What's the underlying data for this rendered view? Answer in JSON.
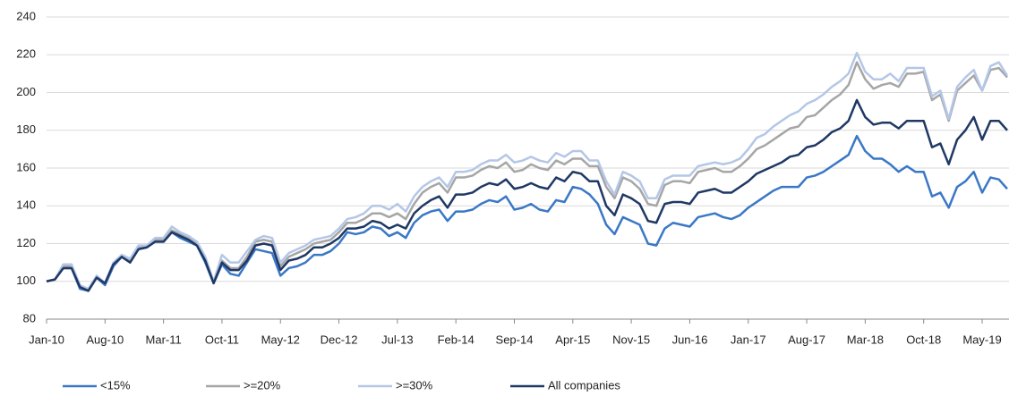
{
  "chart_data": {
    "type": "line",
    "categories": [
      "Jan-10",
      null,
      null,
      null,
      null,
      null,
      null,
      "Aug-10",
      null,
      null,
      null,
      null,
      null,
      null,
      "Mar-11",
      null,
      null,
      null,
      null,
      null,
      null,
      "Oct-11",
      null,
      null,
      null,
      null,
      null,
      null,
      "May-12",
      null,
      null,
      null,
      null,
      null,
      null,
      "Dec-12",
      null,
      null,
      null,
      null,
      null,
      null,
      "Jul-13",
      null,
      null,
      null,
      null,
      null,
      null,
      "Feb-14",
      null,
      null,
      null,
      null,
      null,
      null,
      "Sep-14",
      null,
      null,
      null,
      null,
      null,
      null,
      "Apr-15",
      null,
      null,
      null,
      null,
      null,
      null,
      "Nov-15",
      null,
      null,
      null,
      null,
      null,
      null,
      "Jun-16",
      null,
      null,
      null,
      null,
      null,
      null,
      "Jan-17",
      null,
      null,
      null,
      null,
      null,
      null,
      "Aug-17",
      null,
      null,
      null,
      null,
      null,
      null,
      "Mar-18",
      null,
      null,
      null,
      null,
      null,
      null,
      "Oct-18",
      null,
      null,
      null,
      null,
      null,
      null,
      "May-19",
      null,
      null,
      null
    ],
    "series": [
      {
        "name": "<15%",
        "color": "#3a78c6",
        "values": [
          100,
          101,
          107,
          107,
          96,
          95,
          102,
          98,
          108,
          113,
          110,
          117,
          118,
          121,
          121,
          126,
          123,
          121,
          119,
          110,
          99,
          109,
          104,
          103,
          110,
          117,
          116,
          115,
          103,
          107,
          108,
          110,
          114,
          114,
          116,
          120,
          126,
          125,
          126,
          129,
          128,
          124,
          126,
          123,
          131,
          135,
          137,
          138,
          132,
          137,
          137,
          138,
          141,
          143,
          142,
          145,
          138,
          139,
          141,
          138,
          137,
          143,
          142,
          150,
          149,
          146,
          141,
          130,
          125,
          134,
          132,
          130,
          120,
          119,
          128,
          131,
          130,
          129,
          134,
          135,
          136,
          134,
          133,
          135,
          139,
          142,
          145,
          148,
          150,
          150,
          150,
          155,
          156,
          158,
          161,
          164,
          167,
          177,
          169,
          165,
          165,
          162,
          158,
          161,
          158,
          158,
          145,
          147,
          139,
          150,
          153,
          158,
          147,
          155,
          154,
          149
        ]
      },
      {
        "name": ">=20%",
        "color": "#a6a6a6",
        "values": [
          100,
          101,
          108,
          108,
          97,
          95,
          103,
          99,
          109,
          114,
          111,
          118,
          119,
          122,
          122,
          127,
          125,
          123,
          120,
          112,
          100,
          111,
          107,
          107,
          113,
          121,
          122,
          121,
          108,
          113,
          115,
          117,
          120,
          121,
          122,
          126,
          131,
          131,
          133,
          136,
          136,
          134,
          136,
          133,
          141,
          147,
          150,
          152,
          147,
          155,
          155,
          156,
          159,
          161,
          160,
          163,
          158,
          159,
          162,
          160,
          159,
          164,
          162,
          165,
          165,
          161,
          161,
          150,
          144,
          155,
          153,
          149,
          141,
          140,
          151,
          153,
          153,
          152,
          158,
          159,
          160,
          158,
          158,
          161,
          165,
          170,
          172,
          175,
          178,
          181,
          182,
          187,
          188,
          192,
          196,
          199,
          204,
          216,
          207,
          202,
          204,
          205,
          203,
          210,
          210,
          211,
          196,
          199,
          185,
          201,
          205,
          209,
          201,
          212,
          213,
          208
        ]
      },
      {
        "name": ">=30%",
        "color": "#b4c7e7",
        "values": [
          100,
          101,
          109,
          109,
          98,
          96,
          103,
          99,
          110,
          114,
          112,
          119,
          119,
          123,
          123,
          129,
          126,
          124,
          121,
          113,
          100,
          114,
          110,
          110,
          116,
          122,
          124,
          123,
          110,
          115,
          117,
          119,
          122,
          123,
          124,
          128,
          133,
          134,
          136,
          140,
          140,
          138,
          141,
          137,
          145,
          150,
          153,
          155,
          150,
          158,
          158,
          159,
          162,
          164,
          164,
          167,
          163,
          164,
          166,
          164,
          163,
          168,
          166,
          169,
          169,
          164,
          164,
          153,
          146,
          158,
          156,
          153,
          144,
          144,
          154,
          156,
          156,
          156,
          161,
          162,
          163,
          162,
          163,
          165,
          170,
          176,
          178,
          182,
          185,
          188,
          190,
          194,
          196,
          199,
          203,
          206,
          210,
          221,
          211,
          207,
          207,
          210,
          206,
          213,
          213,
          213,
          198,
          201,
          186,
          203,
          208,
          212,
          201,
          214,
          216,
          209
        ]
      },
      {
        "name": "All companies",
        "color": "#1f3864",
        "values": [
          100,
          101,
          107,
          107,
          97,
          95,
          102,
          99,
          109,
          113,
          110,
          117,
          118,
          121,
          121,
          126,
          124,
          122,
          119,
          111,
          99,
          110,
          106,
          106,
          111,
          119,
          120,
          119,
          106,
          111,
          112,
          114,
          118,
          118,
          120,
          123,
          128,
          128,
          129,
          132,
          131,
          128,
          130,
          128,
          136,
          140,
          143,
          145,
          139,
          146,
          146,
          147,
          150,
          152,
          151,
          154,
          149,
          150,
          152,
          150,
          149,
          155,
          153,
          158,
          157,
          153,
          153,
          140,
          135,
          146,
          144,
          141,
          132,
          131,
          141,
          142,
          142,
          141,
          147,
          148,
          149,
          147,
          147,
          150,
          153,
          157,
          159,
          161,
          163,
          166,
          167,
          171,
          172,
          175,
          179,
          181,
          185,
          196,
          187,
          183,
          184,
          184,
          181,
          185,
          185,
          185,
          171,
          173,
          162,
          175,
          180,
          187,
          175,
          185,
          185,
          180
        ]
      }
    ],
    "ylim": [
      80,
      240
    ],
    "yticks": [
      80,
      100,
      120,
      140,
      160,
      180,
      200,
      220,
      240
    ],
    "grid": true,
    "legend": "bottom"
  }
}
